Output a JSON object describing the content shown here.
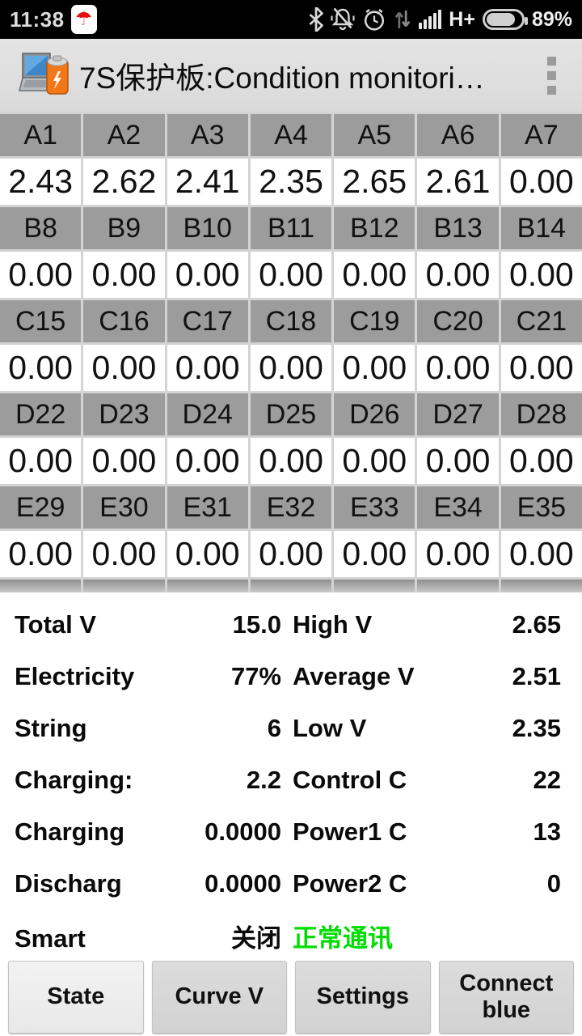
{
  "status_bar": {
    "time": "11:38",
    "umbrella_glyph": "☂",
    "network": "H+",
    "battery_percent": "89%",
    "icons": [
      "umbrella",
      "bluetooth",
      "mute-bell",
      "alarm-clock",
      "data-arrows",
      "signal-bars",
      "battery"
    ]
  },
  "title_bar": {
    "title": "7S保护板:Condition monitori…",
    "app_icon": "laptop-battery"
  },
  "grid": {
    "rows": [
      {
        "headers": [
          "A1",
          "A2",
          "A3",
          "A4",
          "A5",
          "A6",
          "A7"
        ],
        "values": [
          "2.43",
          "2.62",
          "2.41",
          "2.35",
          "2.65",
          "2.61",
          "0.00"
        ]
      },
      {
        "headers": [
          "B8",
          "B9",
          "B10",
          "B11",
          "B12",
          "B13",
          "B14"
        ],
        "values": [
          "0.00",
          "0.00",
          "0.00",
          "0.00",
          "0.00",
          "0.00",
          "0.00"
        ]
      },
      {
        "headers": [
          "C15",
          "C16",
          "C17",
          "C18",
          "C19",
          "C20",
          "C21"
        ],
        "values": [
          "0.00",
          "0.00",
          "0.00",
          "0.00",
          "0.00",
          "0.00",
          "0.00"
        ]
      },
      {
        "headers": [
          "D22",
          "D23",
          "D24",
          "D25",
          "D26",
          "D27",
          "D28"
        ],
        "values": [
          "0.00",
          "0.00",
          "0.00",
          "0.00",
          "0.00",
          "0.00",
          "0.00"
        ]
      },
      {
        "headers": [
          "E29",
          "E30",
          "E31",
          "E32",
          "E33",
          "E34",
          "E35"
        ],
        "values": [
          "0.00",
          "0.00",
          "0.00",
          "0.00",
          "0.00",
          "0.00",
          "0.00"
        ]
      }
    ]
  },
  "stats": {
    "rows": [
      {
        "left_label": "Total V",
        "left_value": "15.0",
        "right_label": "High V",
        "right_value": "2.65"
      },
      {
        "left_label": "Electricity",
        "left_value": "77%",
        "right_label": "Average V",
        "right_value": "2.51"
      },
      {
        "left_label": "String",
        "left_value": "6",
        "right_label": "Low V",
        "right_value": "2.35"
      },
      {
        "left_label": "Charging:",
        "left_value": "2.2",
        "right_label": "Control C",
        "right_value": "22"
      },
      {
        "left_label": "Charging",
        "left_value": "0.0000",
        "right_label": "Power1 C",
        "right_value": "13"
      },
      {
        "left_label": "Discharg",
        "left_value": "0.0000",
        "right_label": "Power2 C",
        "right_value": "0"
      },
      {
        "left_label": "Smart",
        "left_value": "关闭",
        "right_label": "正常通讯",
        "right_value": "",
        "right_label_color": "#00dd00"
      }
    ]
  },
  "buttons": [
    {
      "label": "State",
      "active": true
    },
    {
      "label": "Curve V",
      "active": false
    },
    {
      "label": "Settings",
      "active": false
    },
    {
      "label": "Connect blue",
      "active": false
    }
  ],
  "colors": {
    "status_green_text": "#00dd00",
    "grid_header_bg": "#9c9c9c",
    "grid_value_bg": "#ffffff",
    "umbrella_red": "#e01010"
  }
}
